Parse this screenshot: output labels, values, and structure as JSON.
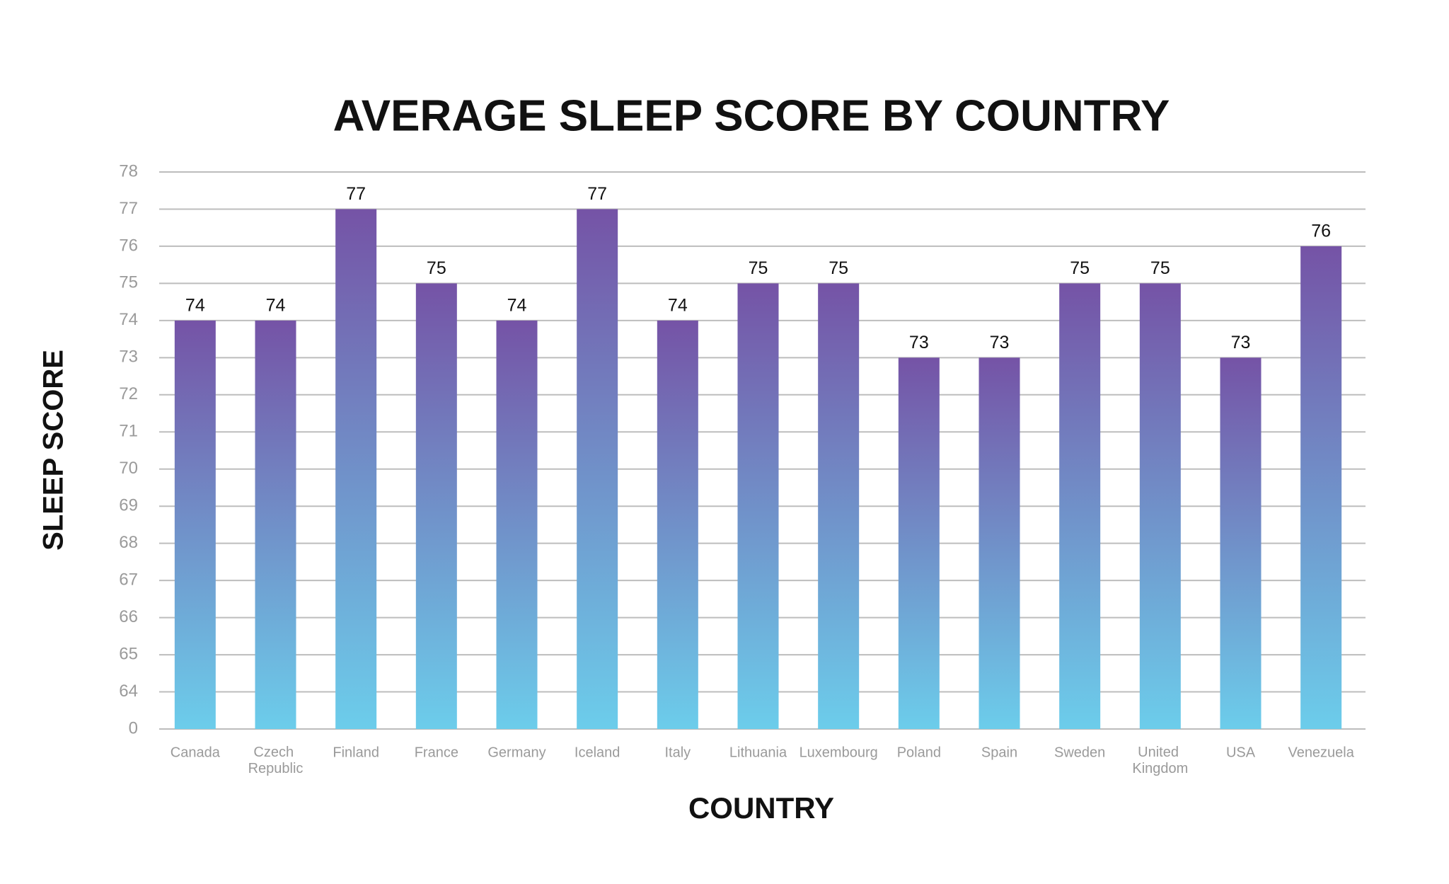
{
  "chart_data": {
    "type": "bar",
    "title": "AVERAGE SLEEP SCORE BY COUNTRY",
    "x_label": "COUNTRY",
    "y_label": "SLEEP SCORE",
    "categories": [
      "Canada",
      "Czech Republic",
      "Finland",
      "France",
      "Germany",
      "Iceland",
      "Italy",
      "Lithuania",
      "Luxembourg",
      "Poland",
      "Spain",
      "Sweden",
      "United Kingdom",
      "USA",
      "Venezuela"
    ],
    "values": [
      74,
      74,
      77,
      75,
      74,
      77,
      74,
      75,
      75,
      73,
      73,
      75,
      75,
      73,
      76
    ],
    "gradient": [
      "#7553a6",
      "#6ccdeb"
    ],
    "ylim": [
      0,
      78
    ],
    "yticks": [
      0,
      64,
      65,
      66,
      67,
      68,
      69,
      70,
      71,
      72,
      73,
      74,
      75,
      76,
      77,
      78
    ],
    "axis_break": true,
    "grid": true
  }
}
